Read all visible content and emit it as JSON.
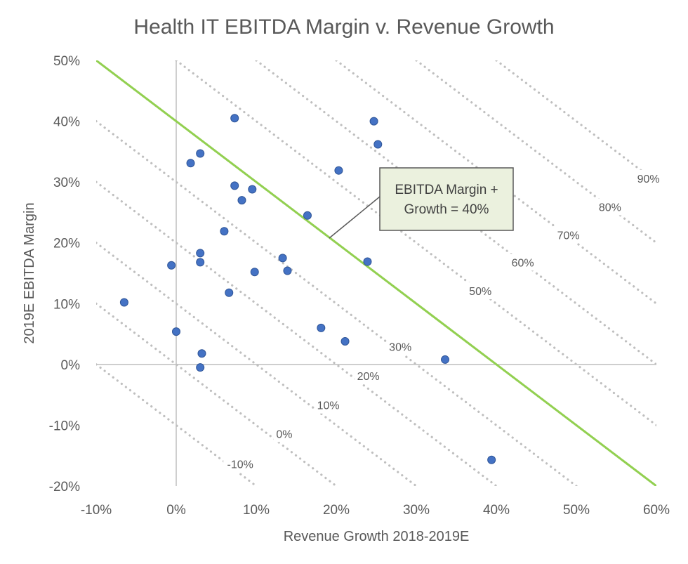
{
  "chart_data": {
    "type": "scatter",
    "title": "Health IT EBITDA Margin v. Revenue Growth",
    "xlabel": "Revenue Growth 2018-2019E",
    "ylabel": "2019E EBITDA Margin",
    "xlim": [
      -0.1,
      0.6
    ],
    "ylim": [
      -0.2,
      0.5
    ],
    "x_ticks": [
      -0.1,
      0.0,
      0.1,
      0.2,
      0.3,
      0.4,
      0.5,
      0.6
    ],
    "x_tick_labels": [
      "-10%",
      "0%",
      "10%",
      "20%",
      "30%",
      "40%",
      "50%",
      "60%"
    ],
    "y_ticks": [
      -0.2,
      -0.1,
      0.0,
      0.1,
      0.2,
      0.3,
      0.4,
      0.5
    ],
    "y_tick_labels": [
      "-20%",
      "-10%",
      "0%",
      "10%",
      "20%",
      "30%",
      "40%",
      "50%"
    ],
    "grid": false,
    "point_color": "#4472C4",
    "point_stroke": "#2F5597",
    "points": [
      {
        "x": -0.065,
        "y": 0.102
      },
      {
        "x": -0.006,
        "y": 0.163
      },
      {
        "x": 0.0,
        "y": 0.054
      },
      {
        "x": 0.018,
        "y": 0.331
      },
      {
        "x": 0.03,
        "y": 0.347
      },
      {
        "x": 0.03,
        "y": 0.183
      },
      {
        "x": 0.03,
        "y": 0.168
      },
      {
        "x": 0.032,
        "y": 0.018
      },
      {
        "x": 0.03,
        "y": -0.005
      },
      {
        "x": 0.06,
        "y": 0.219
      },
      {
        "x": 0.066,
        "y": 0.118
      },
      {
        "x": 0.073,
        "y": 0.405
      },
      {
        "x": 0.073,
        "y": 0.294
      },
      {
        "x": 0.082,
        "y": 0.27
      },
      {
        "x": 0.095,
        "y": 0.288
      },
      {
        "x": 0.098,
        "y": 0.152
      },
      {
        "x": 0.133,
        "y": 0.175
      },
      {
        "x": 0.139,
        "y": 0.154
      },
      {
        "x": 0.164,
        "y": 0.245
      },
      {
        "x": 0.181,
        "y": 0.06
      },
      {
        "x": 0.203,
        "y": 0.319
      },
      {
        "x": 0.211,
        "y": 0.038
      },
      {
        "x": 0.239,
        "y": 0.169
      },
      {
        "x": 0.247,
        "y": 0.4
      },
      {
        "x": 0.252,
        "y": 0.362
      },
      {
        "x": 0.336,
        "y": 0.008
      },
      {
        "x": 0.394,
        "y": -0.157
      }
    ],
    "rule_line": {
      "sum": 0.4,
      "color": "#92D050"
    },
    "iso_lines": {
      "sums": [
        -0.1,
        0.0,
        0.1,
        0.2,
        0.3,
        0.4,
        0.5,
        0.6,
        0.7,
        0.8,
        0.9
      ],
      "color": "#BFBFBF",
      "labels": [
        {
          "text": "-10%",
          "x": 0.08,
          "y": -0.165
        },
        {
          "text": "0%",
          "x": 0.135,
          "y": -0.115
        },
        {
          "text": "10%",
          "x": 0.19,
          "y": -0.068
        },
        {
          "text": "20%",
          "x": 0.24,
          "y": -0.02
        },
        {
          "text": "30%",
          "x": 0.28,
          "y": 0.028
        },
        {
          "text": "50%",
          "x": 0.38,
          "y": 0.12
        },
        {
          "text": "60%",
          "x": 0.433,
          "y": 0.167
        },
        {
          "text": "70%",
          "x": 0.49,
          "y": 0.212
        },
        {
          "text": "80%",
          "x": 0.542,
          "y": 0.258
        },
        {
          "text": "90%",
          "x": 0.59,
          "y": 0.305
        }
      ]
    },
    "callout": {
      "lines": [
        "EBITDA Margin +",
        "Growth = 40%"
      ],
      "fill": "#EBF1DE",
      "stroke": "#595959"
    }
  }
}
